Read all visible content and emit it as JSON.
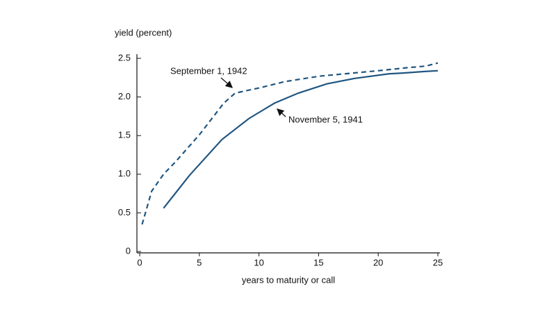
{
  "chart_data": {
    "type": "line",
    "y_label": "yield (percent)",
    "x_label": "years to maturity or call",
    "xlim": [
      0,
      25
    ],
    "xticks": [
      0,
      5,
      10,
      15,
      20,
      25
    ],
    "ylim": [
      0,
      2.5
    ],
    "yticks": [
      0,
      0.5,
      {
        "value": 1,
        "label": "1.0"
      },
      1.5,
      {
        "value": 2,
        "label": "2.0"
      },
      2.5
    ],
    "series": [
      {
        "name": "November 5, 1941",
        "color": "#1f5580",
        "dash": false,
        "x": [
          2,
          4.2,
          6.9,
          9.15,
          11.3,
          13.3,
          15.7,
          18,
          20.9,
          22.1,
          23.9,
          25
        ],
        "values": [
          0.56,
          0.99,
          1.45,
          1.72,
          1.92,
          2.05,
          2.17,
          2.24,
          2.3,
          2.31,
          2.33,
          2.34
        ]
      },
      {
        "name": "September 1, 1942",
        "color": "#1f5580",
        "dash": true,
        "x": [
          0.2,
          0.5,
          1,
          2,
          3,
          5,
          7.05,
          8,
          10.1,
          12.2,
          15.1,
          20,
          22.5,
          24,
          25
        ],
        "values": [
          0.35,
          0.51,
          0.78,
          1.0,
          1.16,
          1.51,
          1.92,
          2.05,
          2.12,
          2.2,
          2.27,
          2.34,
          2.38,
          2.4,
          2.44
        ]
      }
    ]
  }
}
